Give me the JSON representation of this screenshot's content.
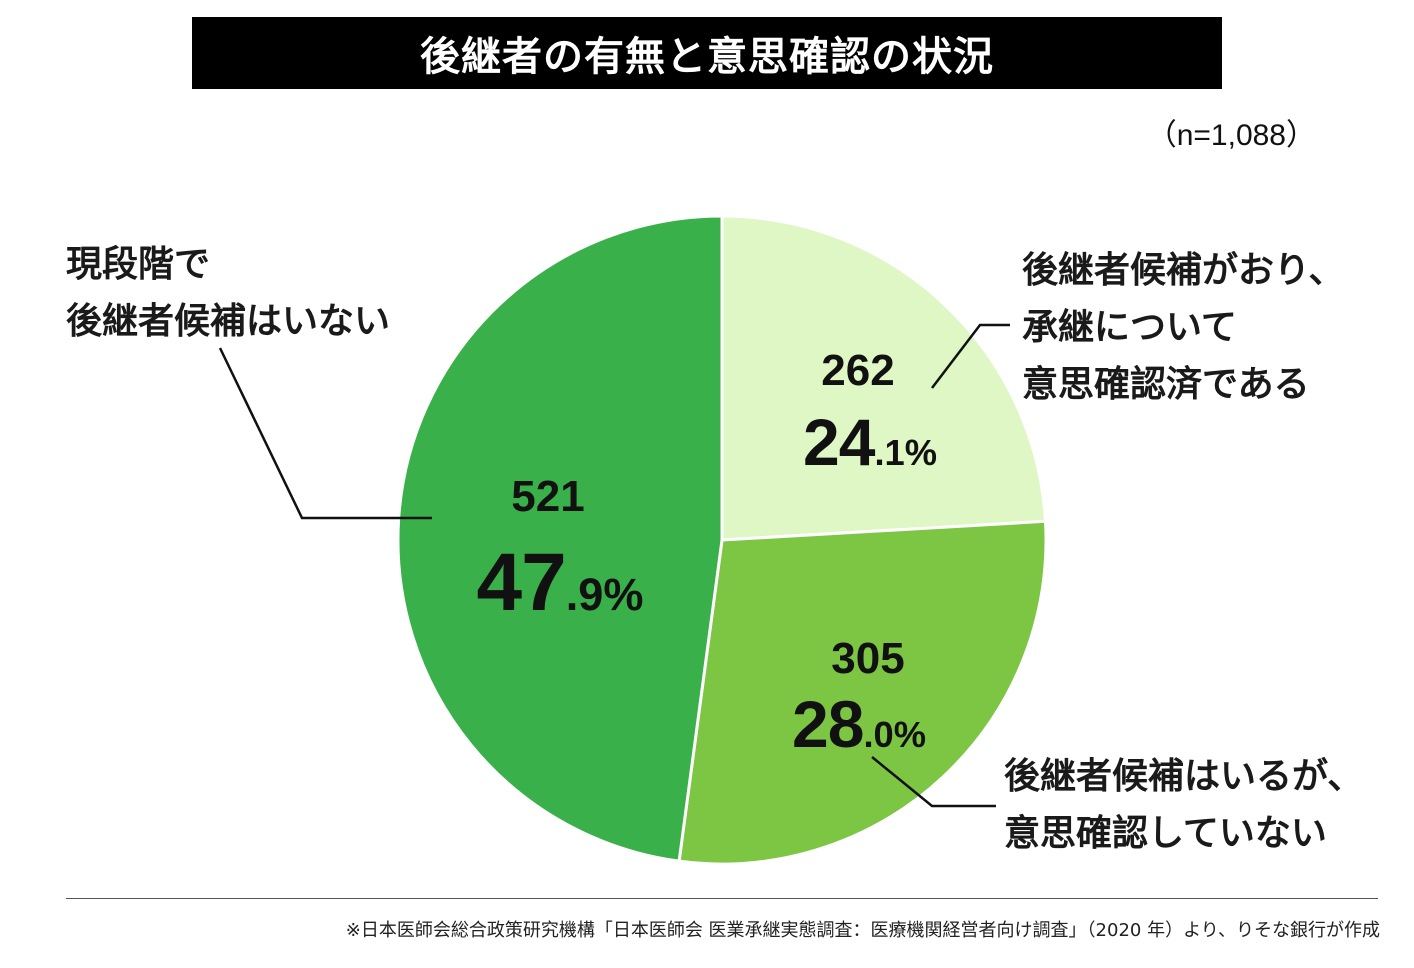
{
  "title": "後継者の有無と意思確認の状況",
  "sample_size": "（n=1,088）",
  "source_note": "※日本医師会総合政策研究機構「日本医師会 医業承継実態調査：医療機関経営者向け調査」（2020 年）より、りそな銀行が作成",
  "colors": {
    "title_bg": "#000000",
    "title_text": "#ffffff",
    "slice_light": "#dff7c4",
    "slice_mid": "#7cc644",
    "slice_dark": "#3ab04b",
    "leader_line": "#111111"
  },
  "chart_data": {
    "type": "pie",
    "title": "後継者の有無と意思確認の状況",
    "total": 1088,
    "start_angle_deg": 0,
    "direction": "clockwise",
    "slices": [
      {
        "label_lines": [
          "後継者候補がおり、",
          "承継について",
          "意思確認済である"
        ],
        "count": 262,
        "count_text": "262",
        "percent": 24.1,
        "percent_int": "24",
        "percent_dec": ".1%",
        "color": "#dff7c4"
      },
      {
        "label_lines": [
          "後継者候補はいるが、",
          "意思確認していない"
        ],
        "count": 305,
        "count_text": "305",
        "percent": 28.0,
        "percent_int": "28",
        "percent_dec": ".0%",
        "color": "#7cc644"
      },
      {
        "label_lines": [
          "現段階で",
          "後継者候補はいない"
        ],
        "count": 521,
        "count_text": "521",
        "percent": 47.9,
        "percent_int": "47",
        "percent_dec": ".9%",
        "color": "#3ab04b"
      }
    ]
  }
}
